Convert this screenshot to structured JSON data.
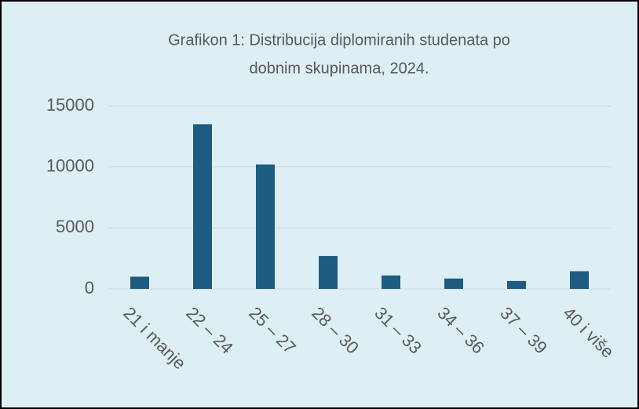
{
  "chart_data": {
    "type": "bar",
    "title": [
      "Grafikon 1: Distribucija diplomiranih studenata po",
      "dobnim skupinama, 2024."
    ],
    "categories": [
      "21 i manje",
      "22 – 24",
      "25 – 27",
      "28 – 30",
      "31 – 33",
      "34 – 36",
      "37 – 39",
      "40 i više"
    ],
    "values": [
      1000,
      13500,
      10200,
      2700,
      1100,
      850,
      650,
      1450
    ],
    "color": "#1d5c80",
    "ylim": [
      0,
      15000
    ],
    "yticks": [
      0,
      5000,
      10000,
      15000
    ],
    "grid": true
  }
}
